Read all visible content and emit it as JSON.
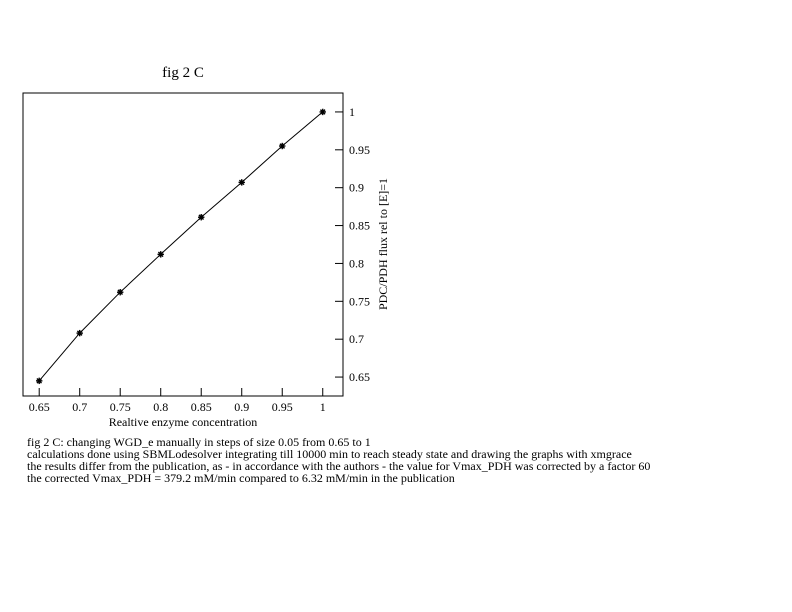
{
  "chart_data": {
    "type": "line",
    "title": "fig 2 C",
    "xlabel": "Realtive enzyme concentration",
    "ylabel": "PDC/PDH flux rel to [E]=1",
    "xlim": [
      0.63,
      1.025
    ],
    "ylim": [
      0.625,
      1.025
    ],
    "x_ticks": [
      "0.65",
      "0.7",
      "0.75",
      "0.8",
      "0.85",
      "0.9",
      "0.95",
      "1"
    ],
    "y_ticks": [
      "0.65",
      "0.7",
      "0.75",
      "0.8",
      "0.85",
      "0.9",
      "0.95",
      "1"
    ],
    "y_axis_side": "right",
    "grid": false,
    "series": [
      {
        "x": [
          0.65,
          0.7,
          0.75,
          0.8,
          0.85,
          0.9,
          0.95,
          1.0
        ],
        "y": [
          0.645,
          0.708,
          0.762,
          0.812,
          0.861,
          0.907,
          0.955,
          1.0
        ],
        "marker": "star",
        "color": "#000000"
      }
    ]
  },
  "caption": {
    "lines": [
      " fig 2 C: changing WGD_e manually in steps of size 0.05 from 0.65 to 1",
      "calculations done using SBMLodesolver integrating till 10000 min to reach steady state and drawing the graphs with xmgrace",
      "the results differ from the publication, as - in accordance with the authors -  the value for Vmax_PDH  was corrected by a factor 60",
      "the corrected Vmax_PDH = 379.2 mM/min compared to 6.32 mM/min in the publication"
    ]
  }
}
